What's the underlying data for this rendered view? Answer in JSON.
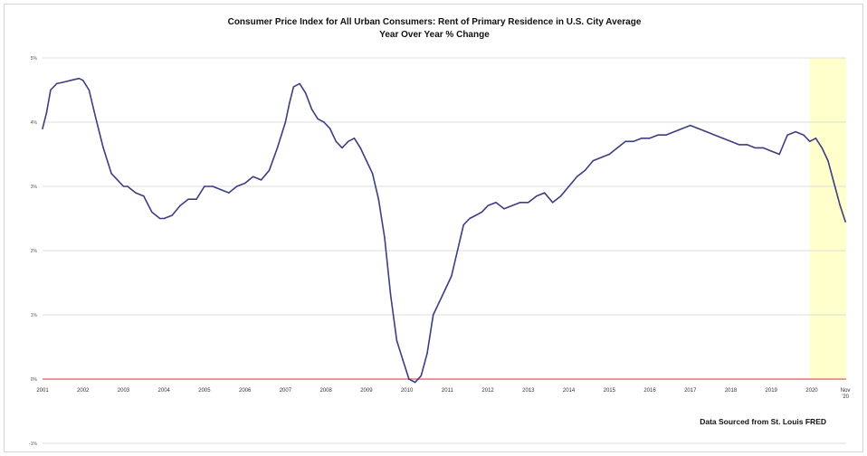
{
  "chart_data": {
    "type": "line",
    "title": "Consumer Price Index for All Urban Consumers: Rent of Primary Residence in U.S. City Average",
    "subtitle": "Year Over Year % Change",
    "source": "Data Sourced from St. Louis FRED",
    "xlabel": "",
    "ylabel": "",
    "xlim": [
      2001,
      2020.85
    ],
    "ylim": [
      -1,
      5
    ],
    "ytick_values": [
      -1,
      0,
      1,
      2,
      3,
      4,
      5
    ],
    "ytick_labels": [
      "-1%",
      "0%",
      "1%",
      "2%",
      "3%",
      "4%",
      "5%"
    ],
    "xtick_values": [
      2001,
      2002,
      2003,
      2004,
      2005,
      2006,
      2007,
      2008,
      2009,
      2010,
      2011,
      2012,
      2013,
      2014,
      2015,
      2016,
      2017,
      2018,
      2019,
      2020,
      2020.83
    ],
    "xtick_labels": [
      "2001",
      "2002",
      "2003",
      "2004",
      "2005",
      "2006",
      "2007",
      "2008",
      "2009",
      "2010",
      "2011",
      "2012",
      "2013",
      "2014",
      "2015",
      "2016",
      "2017",
      "2018",
      "2019",
      "2020",
      "Nov '20"
    ],
    "highlight_band": {
      "from": 2019.95,
      "to": 2020.85,
      "color": "#ffffcc"
    },
    "zero_line_color": "#e69a9a",
    "grid": true,
    "series": [
      {
        "name": "Rent of Primary Residence YoY % Change",
        "color": "#3d3d80",
        "x": [
          2001.0,
          2001.1,
          2001.2,
          2001.35,
          2001.5,
          2001.7,
          2001.9,
          2002.0,
          2002.15,
          2002.3,
          2002.5,
          2002.7,
          2002.85,
          2003.0,
          2003.1,
          2003.3,
          2003.5,
          2003.7,
          2003.9,
          2004.0,
          2004.2,
          2004.4,
          2004.6,
          2004.8,
          2005.0,
          2005.2,
          2005.4,
          2005.6,
          2005.8,
          2006.0,
          2006.2,
          2006.4,
          2006.6,
          2006.8,
          2007.0,
          2007.1,
          2007.2,
          2007.35,
          2007.5,
          2007.65,
          2007.8,
          2007.95,
          2008.1,
          2008.25,
          2008.4,
          2008.55,
          2008.7,
          2008.85,
          2009.0,
          2009.15,
          2009.3,
          2009.45,
          2009.6,
          2009.75,
          2009.9,
          2010.05,
          2010.2,
          2010.35,
          2010.5,
          2010.65,
          2010.8,
          2010.95,
          2011.1,
          2011.25,
          2011.4,
          2011.55,
          2011.7,
          2011.85,
          2012.0,
          2012.2,
          2012.4,
          2012.6,
          2012.8,
          2013.0,
          2013.2,
          2013.4,
          2013.6,
          2013.8,
          2014.0,
          2014.2,
          2014.4,
          2014.6,
          2014.8,
          2015.0,
          2015.2,
          2015.4,
          2015.6,
          2015.8,
          2016.0,
          2016.2,
          2016.4,
          2016.6,
          2016.8,
          2017.0,
          2017.2,
          2017.4,
          2017.6,
          2017.8,
          2018.0,
          2018.2,
          2018.4,
          2018.6,
          2018.8,
          2019.0,
          2019.2,
          2019.4,
          2019.6,
          2019.8,
          2019.95,
          2020.1,
          2020.25,
          2020.4,
          2020.55,
          2020.7,
          2020.83
        ],
        "values": [
          3.9,
          4.15,
          4.5,
          4.6,
          4.62,
          4.65,
          4.68,
          4.65,
          4.5,
          4.1,
          3.6,
          3.2,
          3.1,
          3.0,
          3.0,
          2.9,
          2.85,
          2.6,
          2.5,
          2.5,
          2.55,
          2.7,
          2.8,
          2.8,
          3.0,
          3.0,
          2.95,
          2.9,
          3.0,
          3.05,
          3.15,
          3.1,
          3.25,
          3.6,
          4.0,
          4.3,
          4.55,
          4.6,
          4.45,
          4.2,
          4.05,
          4.0,
          3.9,
          3.7,
          3.6,
          3.7,
          3.75,
          3.6,
          3.4,
          3.2,
          2.8,
          2.2,
          1.3,
          0.6,
          0.3,
          0.0,
          -0.05,
          0.05,
          0.4,
          1.0,
          1.2,
          1.4,
          1.6,
          2.0,
          2.4,
          2.5,
          2.55,
          2.6,
          2.7,
          2.75,
          2.65,
          2.7,
          2.75,
          2.75,
          2.85,
          2.9,
          2.75,
          2.85,
          3.0,
          3.15,
          3.25,
          3.4,
          3.45,
          3.5,
          3.6,
          3.7,
          3.7,
          3.75,
          3.75,
          3.8,
          3.8,
          3.85,
          3.9,
          3.95,
          3.9,
          3.85,
          3.8,
          3.75,
          3.7,
          3.65,
          3.65,
          3.6,
          3.6,
          3.55,
          3.5,
          3.8,
          3.85,
          3.8,
          3.7,
          3.75,
          3.6,
          3.4,
          3.05,
          2.7,
          2.45
        ]
      }
    ]
  }
}
